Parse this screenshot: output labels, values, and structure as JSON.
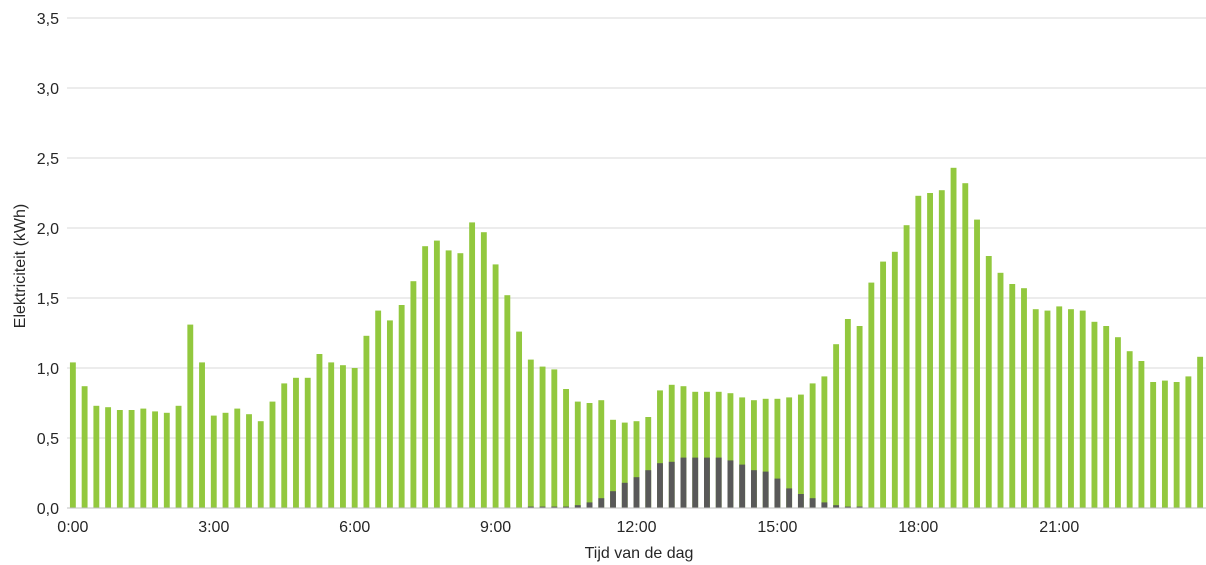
{
  "chart_data": {
    "type": "bar",
    "xlabel": "Tijd van de dag",
    "ylabel": "Elektriciteit (kWh)",
    "ylim": [
      0,
      3.5
    ],
    "yticks": [
      "0,0",
      "0,5",
      "1,0",
      "1,5",
      "2,0",
      "2,5",
      "3,0",
      "3,5"
    ],
    "xticks": [
      "0:00",
      "3:00",
      "6:00",
      "9:00",
      "12:00",
      "15:00",
      "18:00",
      "21:00"
    ],
    "grid": "horizontal",
    "legend": "none",
    "interval_minutes": 15,
    "series": [
      {
        "color": "#92c83e",
        "values": [
          1.04,
          0.87,
          0.73,
          0.72,
          0.7,
          0.7,
          0.71,
          0.69,
          0.68,
          0.73,
          1.31,
          1.04,
          0.66,
          0.68,
          0.71,
          0.67,
          0.62,
          0.76,
          0.89,
          0.93,
          0.93,
          1.1,
          1.04,
          1.02,
          1.0,
          1.23,
          1.41,
          1.34,
          1.45,
          1.62,
          1.87,
          1.91,
          1.84,
          1.82,
          2.04,
          1.97,
          1.74,
          1.52,
          1.26,
          1.06,
          1.01,
          0.99,
          0.85,
          0.76,
          0.75,
          0.77,
          0.63,
          0.61,
          0.62,
          0.65,
          0.84,
          0.88,
          0.87,
          0.83,
          0.83,
          0.83,
          0.82,
          0.79,
          0.77,
          0.78,
          0.78,
          0.79,
          0.81,
          0.89,
          0.94,
          1.17,
          1.35,
          1.3,
          1.61,
          1.76,
          1.83,
          2.02,
          2.23,
          2.25,
          2.27,
          2.43,
          2.32,
          2.06,
          1.8,
          1.68,
          1.6,
          1.57,
          1.42,
          1.41,
          1.44,
          1.42,
          1.41,
          1.33,
          1.3,
          1.22,
          1.12,
          1.05,
          0.9,
          0.91,
          0.9,
          0.94,
          1.08
        ]
      },
      {
        "color": "#595959",
        "values": [
          0,
          0,
          0,
          0,
          0,
          0,
          0,
          0,
          0,
          0,
          0,
          0,
          0,
          0,
          0,
          0,
          0,
          0,
          0,
          0,
          0,
          0,
          0,
          0,
          0,
          0,
          0,
          0,
          0,
          0,
          0,
          0,
          0,
          0,
          0,
          0,
          0,
          0,
          0,
          0.01,
          0.01,
          0.01,
          0.01,
          0.02,
          0.04,
          0.07,
          0.12,
          0.18,
          0.22,
          0.27,
          0.32,
          0.33,
          0.36,
          0.36,
          0.36,
          0.36,
          0.34,
          0.31,
          0.27,
          0.26,
          0.21,
          0.14,
          0.1,
          0.07,
          0.04,
          0.02,
          0.01,
          0.01,
          0,
          0,
          0,
          0,
          0,
          0,
          0,
          0,
          0,
          0,
          0,
          0,
          0,
          0,
          0,
          0,
          0,
          0,
          0,
          0,
          0,
          0,
          0,
          0,
          0,
          0,
          0,
          0,
          0
        ]
      }
    ]
  }
}
